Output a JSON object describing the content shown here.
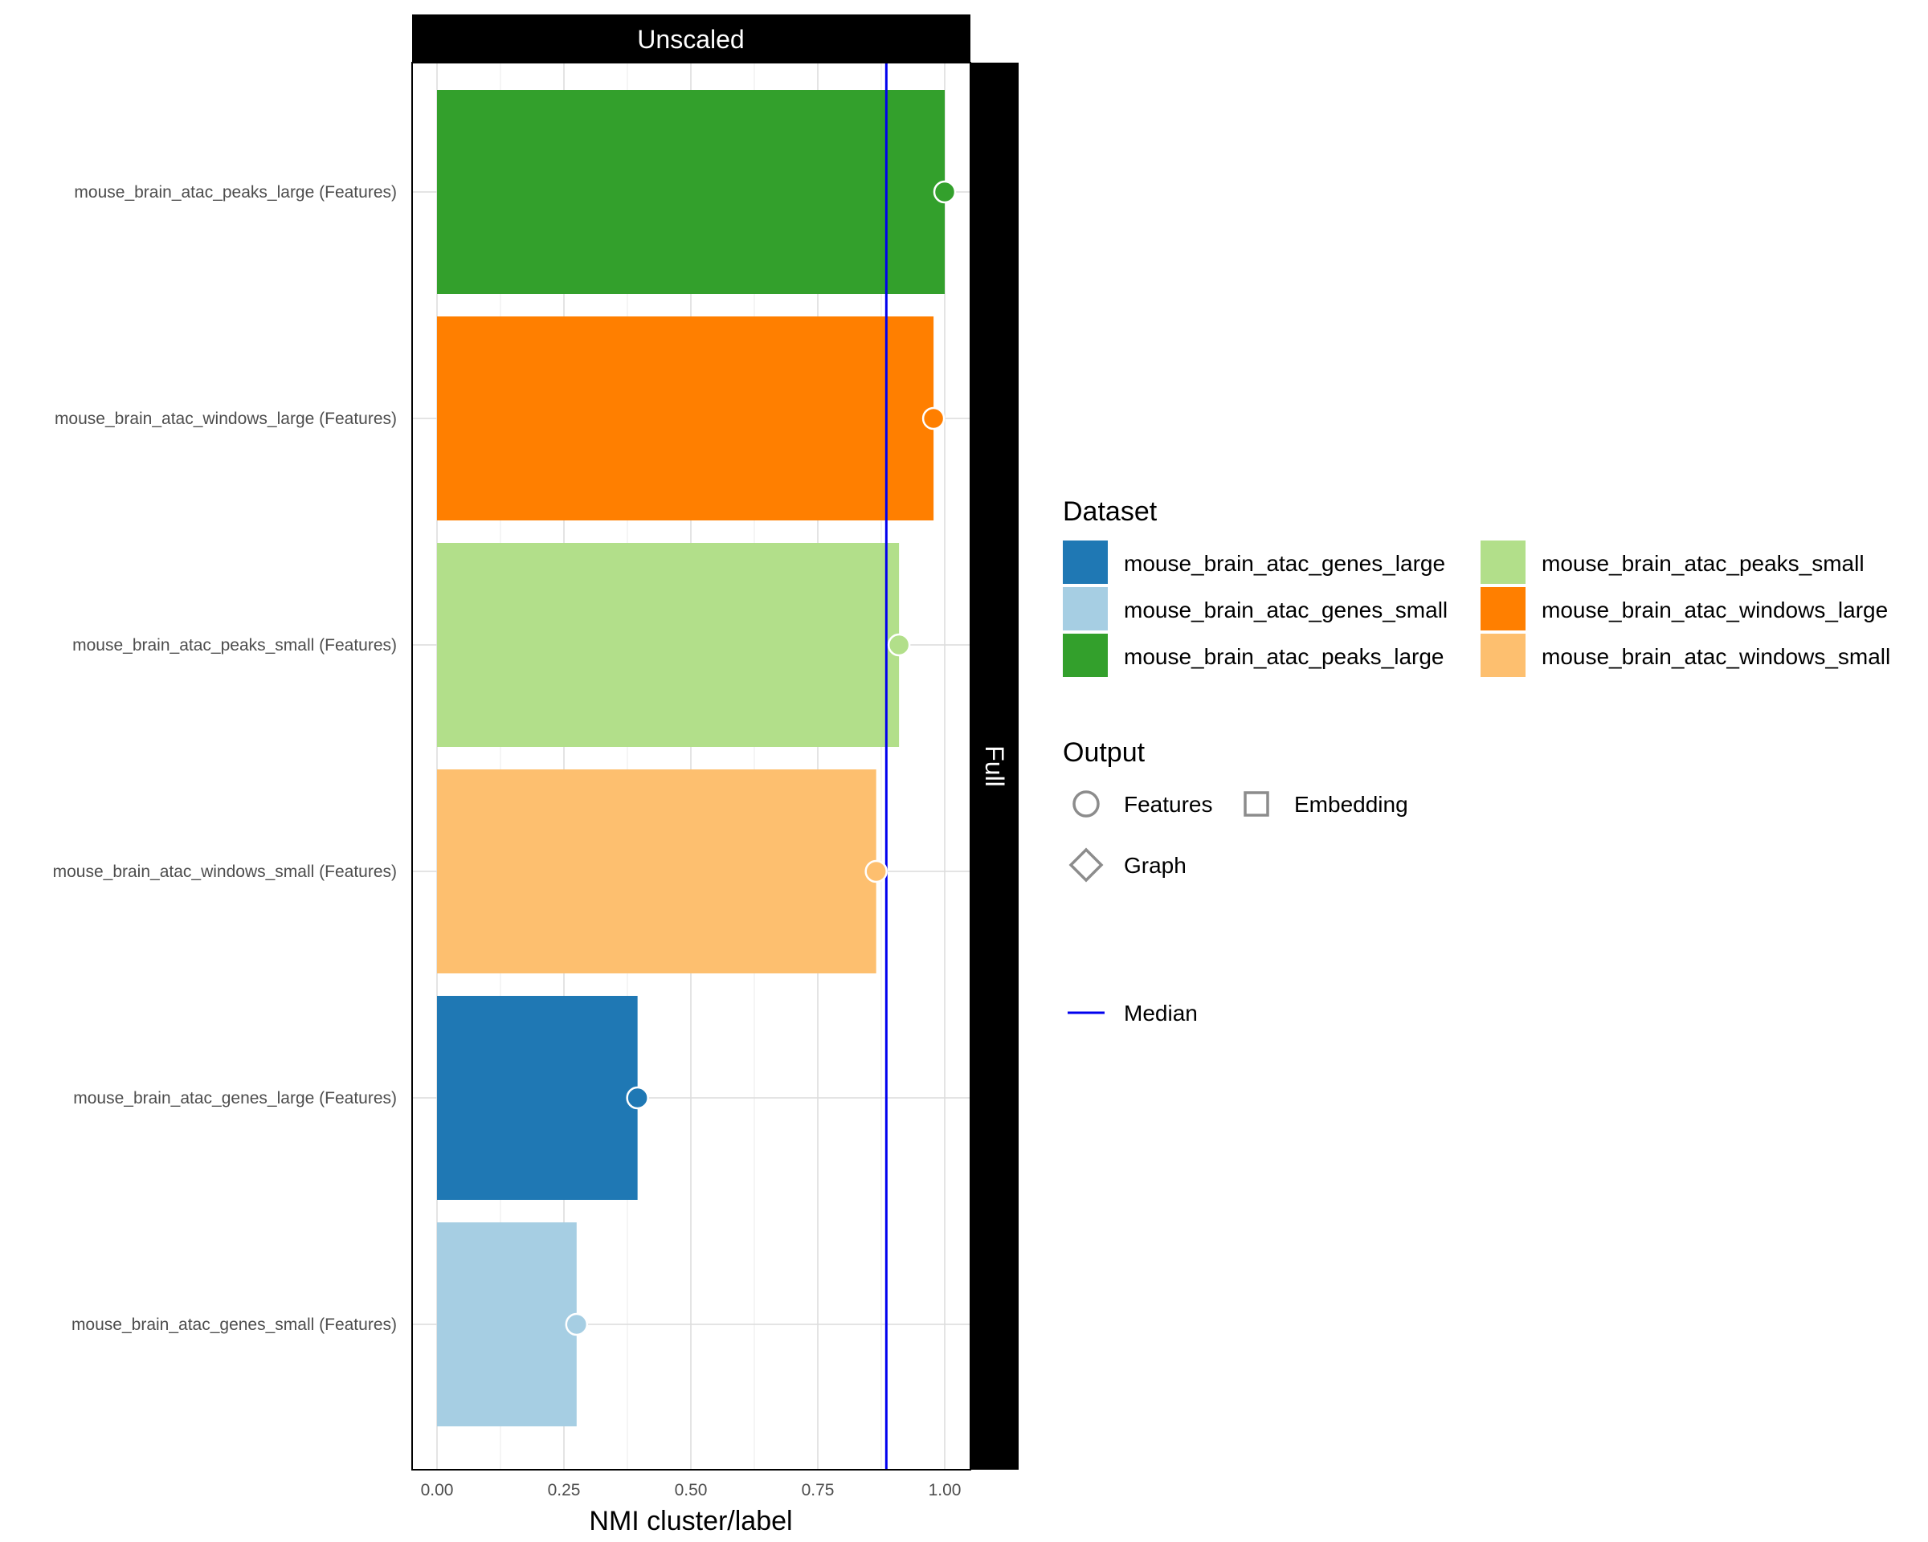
{
  "chart_data": {
    "type": "bar",
    "orientation": "horizontal",
    "facet_top": "Unscaled",
    "facet_right": "Full",
    "xlabel": "NMI cluster/label",
    "ylabel": "",
    "xlim": [
      0,
      1.05
    ],
    "xticks": [
      "0.00",
      "0.25",
      "0.50",
      "0.75",
      "1.00"
    ],
    "xtick_values": [
      0,
      0.25,
      0.5,
      0.75,
      1.0
    ],
    "grid": true,
    "median": 0.885,
    "categories": [
      "mouse_brain_atac_peaks_large (Features)",
      "mouse_brain_atac_windows_large (Features)",
      "mouse_brain_atac_peaks_small (Features)",
      "mouse_brain_atac_windows_small (Features)",
      "mouse_brain_atac_genes_large (Features)",
      "mouse_brain_atac_genes_small (Features)"
    ],
    "values": [
      1.0,
      0.978,
      0.91,
      0.865,
      0.395,
      0.275
    ],
    "colors": [
      "#33a02c",
      "#ff7f00",
      "#b2df8a",
      "#fdbf6f",
      "#1f78b4",
      "#a6cee3"
    ],
    "legend_position": "right",
    "legend": {
      "dataset_title": "Dataset",
      "datasets": [
        {
          "name": "mouse_brain_atac_genes_large",
          "color": "#1f78b4"
        },
        {
          "name": "mouse_brain_atac_genes_small",
          "color": "#a6cee3"
        },
        {
          "name": "mouse_brain_atac_peaks_large",
          "color": "#33a02c"
        },
        {
          "name": "mouse_brain_atac_peaks_small",
          "color": "#b2df8a"
        },
        {
          "name": "mouse_brain_atac_windows_large",
          "color": "#ff7f00"
        },
        {
          "name": "mouse_brain_atac_windows_small",
          "color": "#fdbf6f"
        }
      ],
      "output_title": "Output",
      "outputs": [
        {
          "name": "Features",
          "shape": "circle"
        },
        {
          "name": "Embedding",
          "shape": "square"
        },
        {
          "name": "Graph",
          "shape": "diamond"
        }
      ],
      "median_label": "Median",
      "median_color": "#0000ee"
    }
  }
}
